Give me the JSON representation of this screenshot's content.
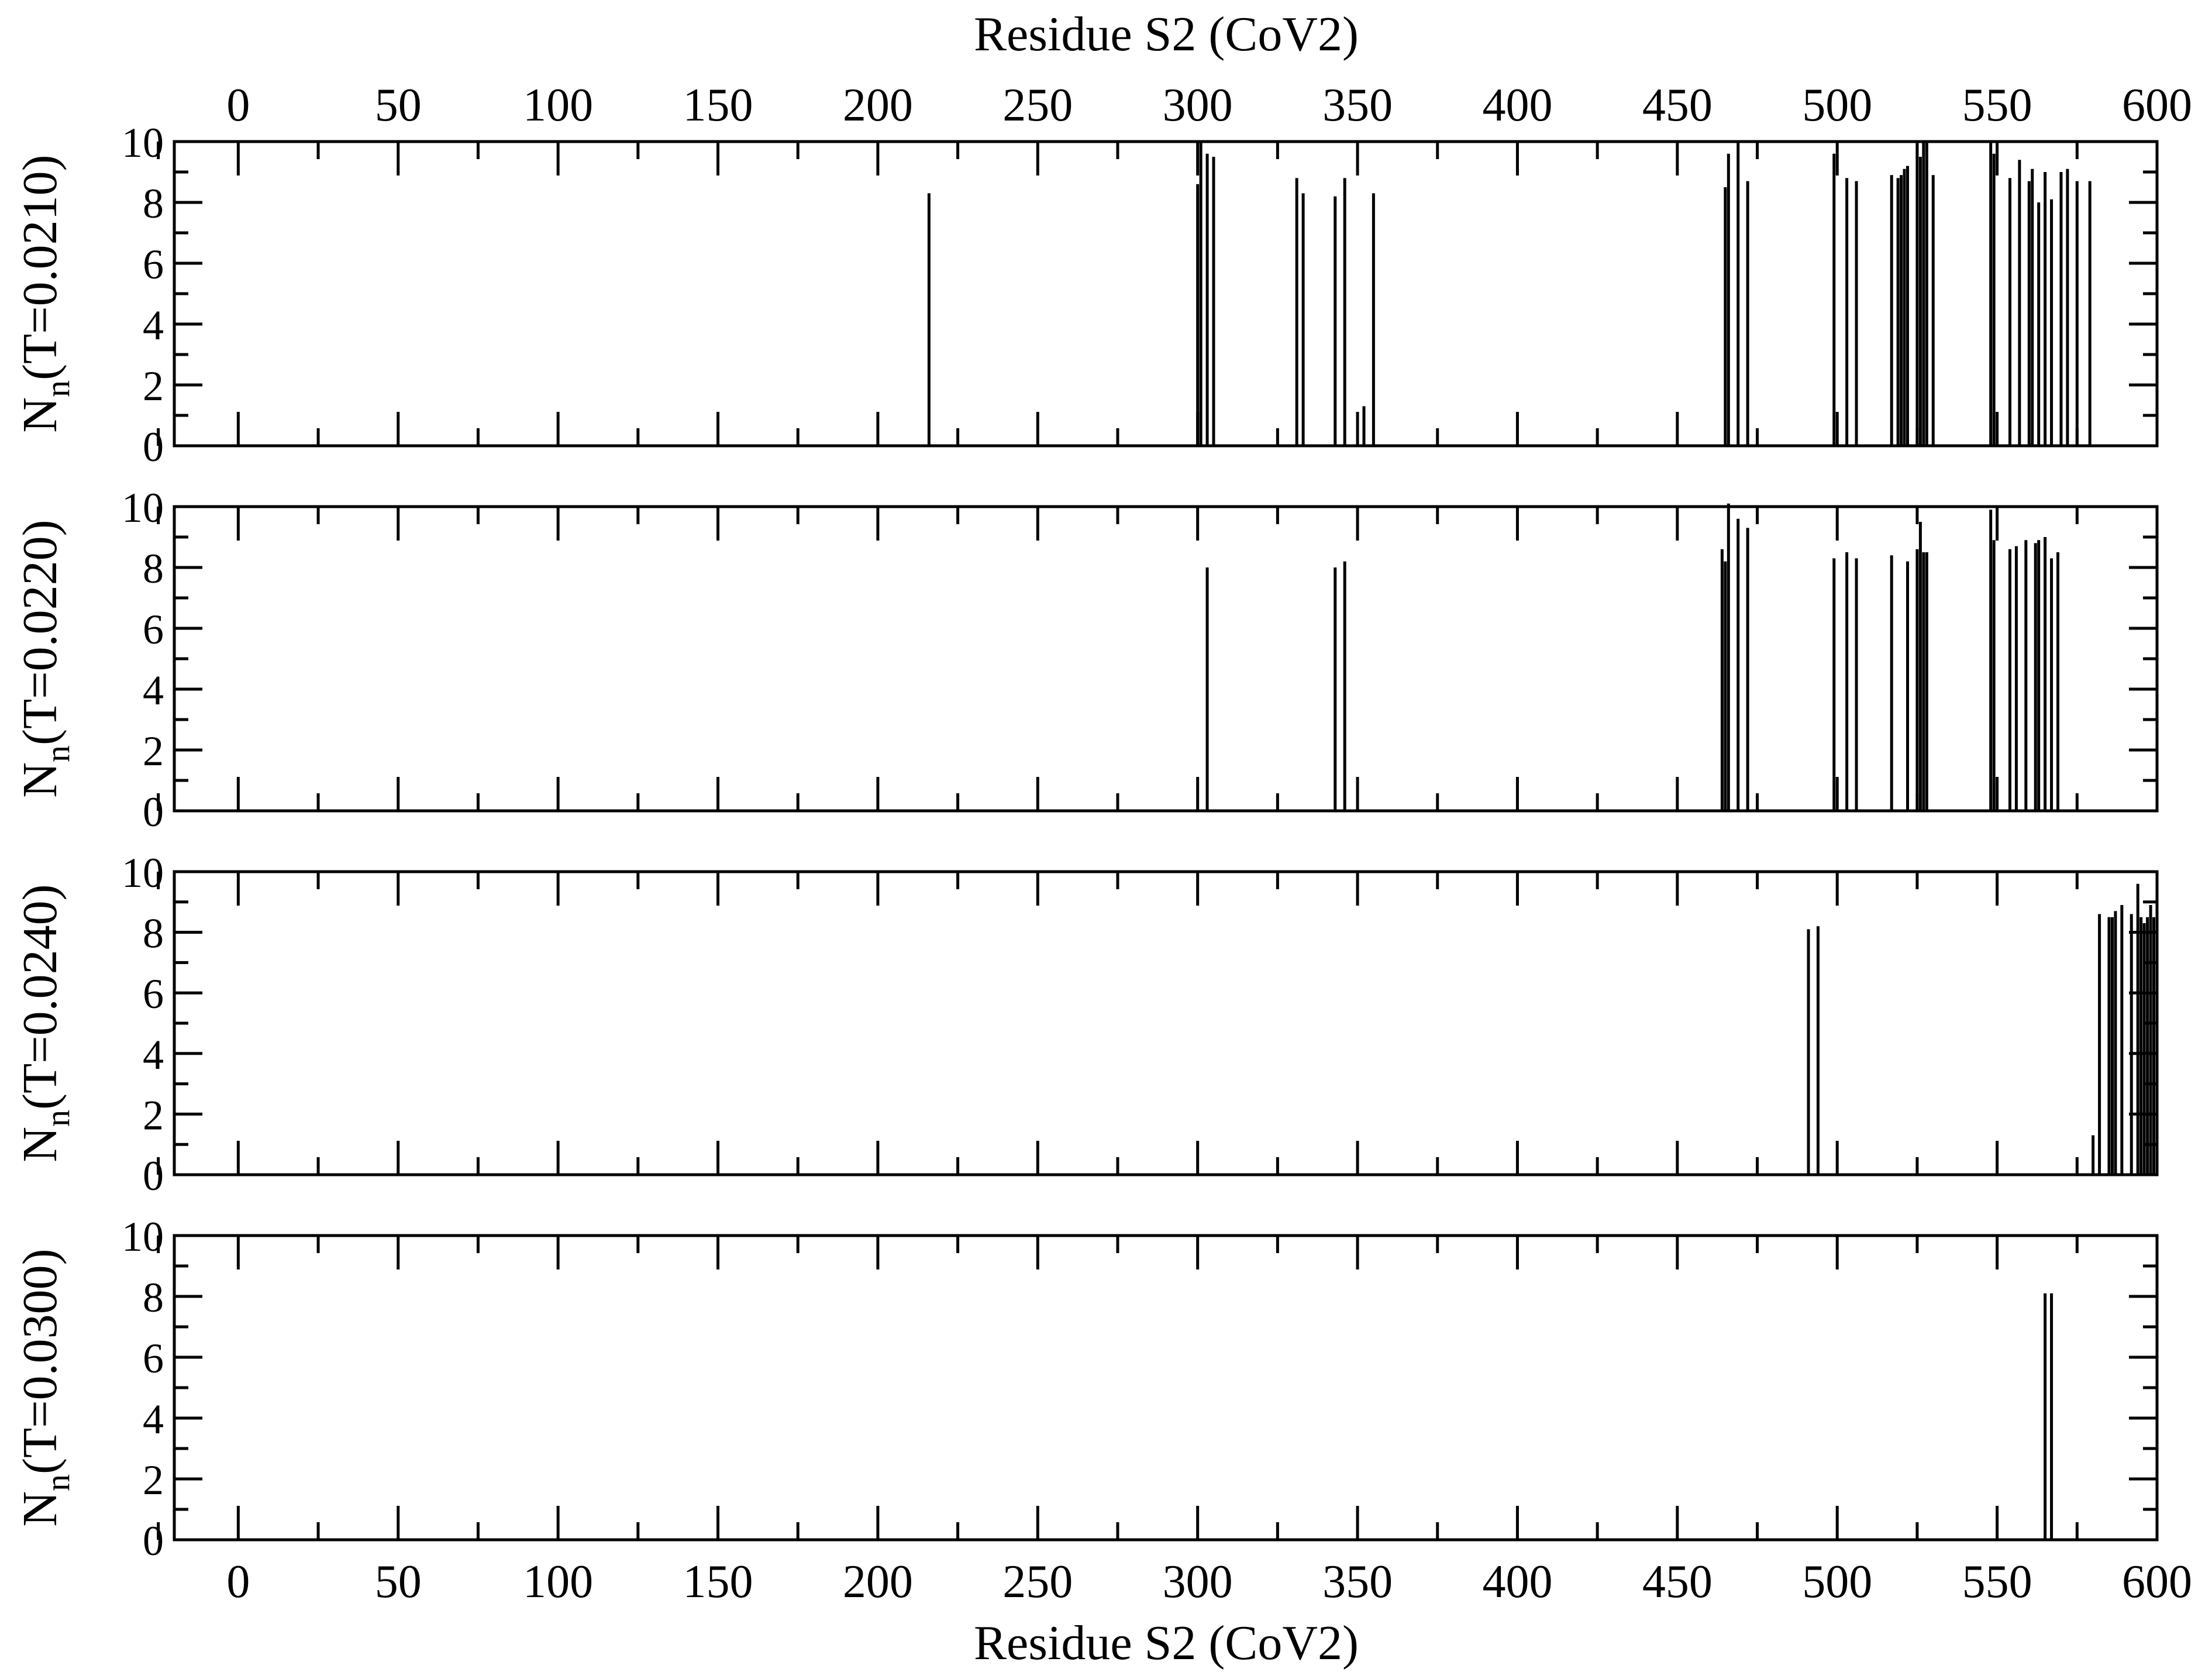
{
  "figure": {
    "top_xlabel": "Residue S2 (CoV2)",
    "bottom_xlabel": "Residue S2 (CoV2)"
  },
  "chart_data": [
    {
      "type": "bar",
      "ylabel_main": "N",
      "ylabel_sub": "n",
      "ylabel_rest": "(T=0.0210)",
      "xlim": [
        -20,
        600
      ],
      "ylim": [
        0,
        10
      ],
      "xticks": [
        0,
        50,
        100,
        150,
        200,
        250,
        300,
        350,
        400,
        450,
        500,
        550,
        600
      ],
      "yticks": [
        0,
        2,
        4,
        6,
        8,
        10
      ],
      "x": [
        216,
        300,
        301,
        303,
        305,
        331,
        333,
        343,
        346,
        352,
        355,
        465,
        466,
        469,
        472,
        499,
        503,
        506,
        517,
        519,
        520,
        521,
        522,
        525,
        526,
        527,
        528,
        530,
        548,
        549,
        554,
        557,
        560,
        561,
        563,
        565,
        567,
        570,
        572,
        575,
        579
      ],
      "values": [
        8.3,
        8.6,
        10,
        9.6,
        9.5,
        8.8,
        8.3,
        8.2,
        8.8,
        1.3,
        8.3,
        8.5,
        9.6,
        10,
        8.7,
        9.6,
        8.8,
        8.7,
        8.9,
        8.8,
        8.9,
        9.1,
        9.2,
        10,
        9.5,
        10,
        10,
        8.9,
        10,
        9.6,
        8.8,
        9.4,
        8.7,
        9.1,
        8,
        9,
        8.1,
        9,
        9.1,
        8.7,
        8.7
      ]
    },
    {
      "type": "bar",
      "ylabel_main": "N",
      "ylabel_sub": "n",
      "ylabel_rest": "(T=0.0220)",
      "xlim": [
        -20,
        600
      ],
      "ylim": [
        0,
        10
      ],
      "xticks": [
        0,
        50,
        100,
        150,
        200,
        250,
        300,
        350,
        400,
        450,
        500,
        550,
        600
      ],
      "yticks": [
        0,
        2,
        4,
        6,
        8,
        10
      ],
      "x": [
        303,
        343,
        346,
        464,
        465,
        466,
        469,
        472,
        499,
        503,
        506,
        517,
        522,
        525,
        526,
        527,
        528,
        548,
        549,
        554,
        556,
        559,
        562,
        563,
        565,
        567,
        569
      ],
      "values": [
        8,
        8,
        8.2,
        8.6,
        8.2,
        10.1,
        9.6,
        9.3,
        8.3,
        8.5,
        8.3,
        8.4,
        8.2,
        8.6,
        9.5,
        8.5,
        8.5,
        9.9,
        8.9,
        8.6,
        8.7,
        8.9,
        8.8,
        8.9,
        9,
        8.3,
        8.5
      ]
    },
    {
      "type": "bar",
      "ylabel_main": "N",
      "ylabel_sub": "n",
      "ylabel_rest": "(T=0.0240)",
      "xlim": [
        -20,
        600
      ],
      "ylim": [
        0,
        10
      ],
      "xticks": [
        0,
        50,
        100,
        150,
        200,
        250,
        300,
        350,
        400,
        450,
        500,
        550,
        600
      ],
      "yticks": [
        0,
        2,
        4,
        6,
        8,
        10
      ],
      "x": [
        491,
        494,
        580,
        582,
        585,
        586,
        587,
        589,
        592,
        594,
        595,
        596,
        597,
        598,
        599
      ],
      "values": [
        8.1,
        8.2,
        1.3,
        8.6,
        8.5,
        8.5,
        8.7,
        8.9,
        8.6,
        9.6,
        8.5,
        8.3,
        8.5,
        8.9,
        8.5
      ]
    },
    {
      "type": "bar",
      "ylabel_main": "N",
      "ylabel_sub": "n",
      "ylabel_rest": "(T=0.0300)",
      "xlim": [
        -20,
        600
      ],
      "ylim": [
        0,
        10
      ],
      "xticks": [
        0,
        50,
        100,
        150,
        200,
        250,
        300,
        350,
        400,
        450,
        500,
        550,
        600
      ],
      "yticks": [
        0,
        2,
        4,
        6,
        8,
        10
      ],
      "x": [
        565,
        567
      ],
      "values": [
        8.1,
        8.1
      ]
    }
  ]
}
